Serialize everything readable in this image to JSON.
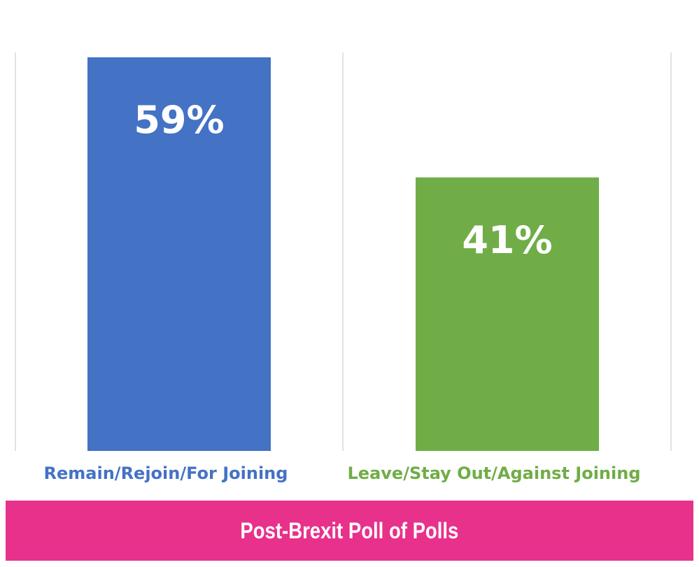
{
  "chart_data": {
    "type": "bar",
    "title": "Post-Brexit Poll of Polls",
    "categories": [
      "Remain/Rejoin/For Joining",
      "Leave/Stay Out/Against Joining"
    ],
    "values": [
      59,
      41
    ],
    "value_labels": [
      "59%",
      "41%"
    ],
    "colors": [
      "#4472c4",
      "#70ad47"
    ],
    "label_colors": [
      "#4472c4",
      "#70ad47"
    ],
    "ylim": [
      0,
      59
    ],
    "grid": "vertical separators",
    "legend": "none",
    "xlabel": "",
    "ylabel": ""
  },
  "theme": {
    "banner_color": "#e8318b",
    "grid_color": "#d9d9d9"
  }
}
